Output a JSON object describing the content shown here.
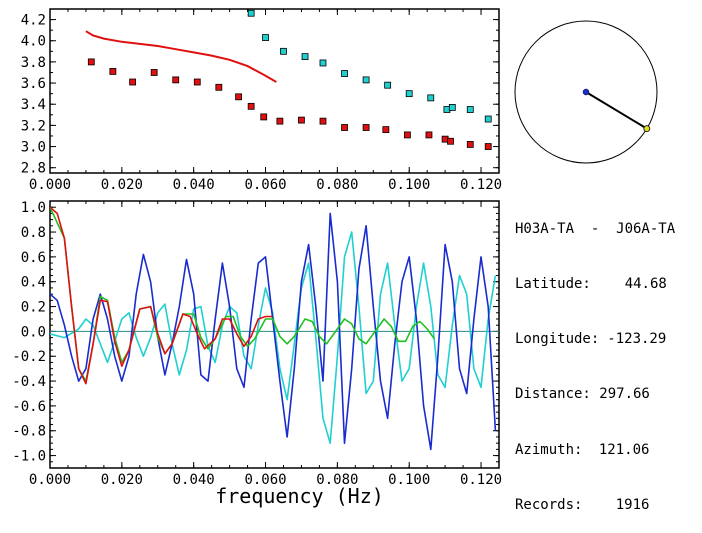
{
  "station_pair": "H03A-TA  -  J06A-TA",
  "info": [
    {
      "label": "Latitude:",
      "value": "44.68"
    },
    {
      "label": "Longitude:",
      "value": "-123.29"
    },
    {
      "label": "Distance:",
      "value": "297.66"
    },
    {
      "label": "Azimuth:",
      "value": "121.06"
    },
    {
      "label": "Records:",
      "value": "1916"
    }
  ],
  "chart_data": [
    {
      "type": "scatter",
      "title": "",
      "xlabel": "",
      "ylabel": "",
      "xlim": [
        0.0,
        0.125
      ],
      "ylim": [
        2.75,
        4.3
      ],
      "x_ticks": [
        "0.000",
        "0.020",
        "0.040",
        "0.060",
        "0.080",
        "0.100",
        "0.120"
      ],
      "y_ticks": [
        "2.8",
        "3.0",
        "3.2",
        "3.4",
        "3.6",
        "3.8",
        "4.0",
        "4.2"
      ],
      "colors": {
        "red": "#e01010",
        "cyan": "#20d0d0"
      },
      "series": [
        {
          "type": "line",
          "color": "#e01010",
          "points": [
            [
              0.01,
              4.09
            ],
            [
              0.012,
              4.05
            ],
            [
              0.015,
              4.02
            ],
            [
              0.02,
              3.99
            ],
            [
              0.025,
              3.97
            ],
            [
              0.03,
              3.95
            ],
            [
              0.035,
              3.92
            ],
            [
              0.04,
              3.89
            ],
            [
              0.045,
              3.86
            ],
            [
              0.05,
              3.82
            ],
            [
              0.055,
              3.76
            ],
            [
              0.06,
              3.67
            ],
            [
              0.063,
              3.61
            ]
          ]
        },
        {
          "type": "scatter",
          "color": "#e01010",
          "points": [
            [
              0.0115,
              3.8
            ],
            [
              0.0175,
              3.71
            ],
            [
              0.023,
              3.61
            ],
            [
              0.029,
              3.7
            ],
            [
              0.035,
              3.63
            ],
            [
              0.041,
              3.61
            ],
            [
              0.047,
              3.56
            ],
            [
              0.0525,
              3.47
            ],
            [
              0.056,
              3.38
            ],
            [
              0.0595,
              3.28
            ],
            [
              0.064,
              3.24
            ],
            [
              0.07,
              3.25
            ],
            [
              0.076,
              3.24
            ],
            [
              0.082,
              3.18
            ],
            [
              0.088,
              3.18
            ],
            [
              0.0935,
              3.16
            ],
            [
              0.0995,
              3.11
            ],
            [
              0.1055,
              3.11
            ],
            [
              0.11,
              3.07
            ],
            [
              0.1115,
              3.05
            ],
            [
              0.117,
              3.02
            ],
            [
              0.122,
              3.0
            ]
          ]
        },
        {
          "type": "scatter",
          "color": "#20d0d0",
          "points": [
            [
              0.056,
              4.26
            ],
            [
              0.06,
              4.03
            ],
            [
              0.065,
              3.9
            ],
            [
              0.071,
              3.85
            ],
            [
              0.076,
              3.79
            ],
            [
              0.082,
              3.69
            ],
            [
              0.088,
              3.63
            ],
            [
              0.094,
              3.58
            ],
            [
              0.1,
              3.5
            ],
            [
              0.106,
              3.46
            ],
            [
              0.1105,
              3.35
            ],
            [
              0.112,
              3.37
            ],
            [
              0.117,
              3.35
            ],
            [
              0.122,
              3.26
            ]
          ]
        }
      ]
    },
    {
      "type": "line",
      "title": "",
      "xlabel": "frequency (Hz)",
      "ylabel": "",
      "xlim": [
        0.0,
        0.125
      ],
      "ylim": [
        -1.1,
        1.05
      ],
      "x_ticks": [
        "0.000",
        "0.020",
        "0.040",
        "0.060",
        "0.080",
        "0.100",
        "0.120"
      ],
      "y_ticks": [
        "1.0",
        "0.8",
        "0.6",
        "0.4",
        "0.2",
        "0.0",
        "-0.2",
        "-0.4",
        "-0.6",
        "-0.8",
        "-1.0"
      ],
      "colors": {
        "blue": "#1a2bd0",
        "cyan": "#20d0d0",
        "red": "#e01010",
        "green": "#20c020",
        "zero_line": "#2a8a8a"
      },
      "series": [
        {
          "color": "#20d0d0",
          "points": [
            [
              0.0,
              -0.02
            ],
            [
              0.004,
              -0.05
            ],
            [
              0.008,
              0.02
            ],
            [
              0.01,
              0.1
            ],
            [
              0.012,
              0.05
            ],
            [
              0.014,
              -0.1
            ],
            [
              0.016,
              -0.25
            ],
            [
              0.018,
              -0.08
            ],
            [
              0.02,
              0.1
            ],
            [
              0.022,
              0.15
            ],
            [
              0.024,
              -0.05
            ],
            [
              0.026,
              -0.2
            ],
            [
              0.028,
              -0.05
            ],
            [
              0.03,
              0.15
            ],
            [
              0.032,
              0.22
            ],
            [
              0.034,
              -0.1
            ],
            [
              0.036,
              -0.35
            ],
            [
              0.038,
              -0.15
            ],
            [
              0.04,
              0.18
            ],
            [
              0.042,
              0.2
            ],
            [
              0.044,
              -0.12
            ],
            [
              0.046,
              -0.25
            ],
            [
              0.048,
              0.05
            ],
            [
              0.05,
              0.2
            ],
            [
              0.052,
              0.15
            ],
            [
              0.054,
              -0.2
            ],
            [
              0.056,
              -0.3
            ],
            [
              0.058,
              0.05
            ],
            [
              0.06,
              0.35
            ],
            [
              0.062,
              0.15
            ],
            [
              0.064,
              -0.3
            ],
            [
              0.066,
              -0.55
            ],
            [
              0.068,
              -0.1
            ],
            [
              0.07,
              0.35
            ],
            [
              0.072,
              0.55
            ],
            [
              0.074,
              -0.05
            ],
            [
              0.076,
              -0.7
            ],
            [
              0.078,
              -0.9
            ],
            [
              0.08,
              -0.2
            ],
            [
              0.082,
              0.6
            ],
            [
              0.084,
              0.8
            ],
            [
              0.086,
              0.2
            ],
            [
              0.088,
              -0.5
            ],
            [
              0.09,
              -0.4
            ],
            [
              0.092,
              0.3
            ],
            [
              0.094,
              0.55
            ],
            [
              0.096,
              0.05
            ],
            [
              0.098,
              -0.4
            ],
            [
              0.1,
              -0.3
            ],
            [
              0.102,
              0.2
            ],
            [
              0.104,
              0.55
            ],
            [
              0.106,
              0.2
            ],
            [
              0.108,
              -0.35
            ],
            [
              0.11,
              -0.45
            ],
            [
              0.112,
              0.05
            ],
            [
              0.114,
              0.45
            ],
            [
              0.116,
              0.3
            ],
            [
              0.118,
              -0.3
            ],
            [
              0.12,
              -0.45
            ],
            [
              0.122,
              0.1
            ],
            [
              0.124,
              0.45
            ]
          ]
        },
        {
          "color": "#1a2bd0",
          "points": [
            [
              0.0,
              0.3
            ],
            [
              0.002,
              0.25
            ],
            [
              0.004,
              0.05
            ],
            [
              0.006,
              -0.2
            ],
            [
              0.008,
              -0.4
            ],
            [
              0.01,
              -0.3
            ],
            [
              0.012,
              0.1
            ],
            [
              0.014,
              0.3
            ],
            [
              0.016,
              0.1
            ],
            [
              0.018,
              -0.2
            ],
            [
              0.02,
              -0.4
            ],
            [
              0.022,
              -0.2
            ],
            [
              0.024,
              0.3
            ],
            [
              0.026,
              0.62
            ],
            [
              0.028,
              0.4
            ],
            [
              0.03,
              -0.05
            ],
            [
              0.032,
              -0.35
            ],
            [
              0.034,
              -0.1
            ],
            [
              0.036,
              0.2
            ],
            [
              0.038,
              0.58
            ],
            [
              0.04,
              0.3
            ],
            [
              0.042,
              -0.35
            ],
            [
              0.044,
              -0.4
            ],
            [
              0.046,
              0.1
            ],
            [
              0.048,
              0.55
            ],
            [
              0.05,
              0.2
            ],
            [
              0.052,
              -0.3
            ],
            [
              0.054,
              -0.45
            ],
            [
              0.056,
              0.1
            ],
            [
              0.058,
              0.55
            ],
            [
              0.06,
              0.6
            ],
            [
              0.062,
              0.1
            ],
            [
              0.064,
              -0.4
            ],
            [
              0.066,
              -0.85
            ],
            [
              0.068,
              -0.3
            ],
            [
              0.07,
              0.4
            ],
            [
              0.072,
              0.7
            ],
            [
              0.074,
              0.2
            ],
            [
              0.076,
              -0.4
            ],
            [
              0.078,
              0.95
            ],
            [
              0.08,
              0.4
            ],
            [
              0.082,
              -0.9
            ],
            [
              0.084,
              -0.3
            ],
            [
              0.086,
              0.5
            ],
            [
              0.088,
              0.85
            ],
            [
              0.09,
              0.2
            ],
            [
              0.092,
              -0.4
            ],
            [
              0.094,
              -0.7
            ],
            [
              0.096,
              -0.1
            ],
            [
              0.098,
              0.4
            ],
            [
              0.1,
              0.6
            ],
            [
              0.102,
              0.1
            ],
            [
              0.104,
              -0.6
            ],
            [
              0.106,
              -0.95
            ],
            [
              0.108,
              -0.2
            ],
            [
              0.11,
              0.7
            ],
            [
              0.112,
              0.4
            ],
            [
              0.114,
              -0.3
            ],
            [
              0.116,
              -0.5
            ],
            [
              0.118,
              0.1
            ],
            [
              0.12,
              0.6
            ],
            [
              0.122,
              0.2
            ],
            [
              0.124,
              -0.8
            ]
          ]
        },
        {
          "color": "#20c020",
          "points": [
            [
              0.0,
              1.0
            ],
            [
              0.004,
              0.75
            ],
            [
              0.006,
              0.2
            ],
            [
              0.008,
              -0.3
            ],
            [
              0.01,
              -0.4
            ],
            [
              0.012,
              -0.1
            ],
            [
              0.014,
              0.28
            ],
            [
              0.016,
              0.25
            ],
            [
              0.018,
              -0.05
            ],
            [
              0.02,
              -0.25
            ],
            [
              0.022,
              -0.15
            ],
            [
              0.025,
              0.18
            ],
            [
              0.028,
              0.2
            ],
            [
              0.03,
              -0.05
            ],
            [
              0.032,
              -0.18
            ],
            [
              0.034,
              -0.1
            ],
            [
              0.037,
              0.14
            ],
            [
              0.04,
              0.14
            ],
            [
              0.042,
              -0.05
            ],
            [
              0.044,
              -0.14
            ],
            [
              0.046,
              -0.06
            ],
            [
              0.049,
              0.12
            ],
            [
              0.051,
              0.12
            ],
            [
              0.053,
              -0.04
            ],
            [
              0.055,
              -0.12
            ],
            [
              0.057,
              -0.06
            ],
            [
              0.06,
              0.1
            ],
            [
              0.062,
              0.1
            ],
            [
              0.064,
              -0.04
            ],
            [
              0.066,
              -0.1
            ],
            [
              0.068,
              -0.04
            ],
            [
              0.071,
              0.1
            ],
            [
              0.073,
              0.08
            ],
            [
              0.075,
              -0.04
            ],
            [
              0.077,
              -0.1
            ],
            [
              0.079,
              -0.02
            ],
            [
              0.082,
              0.1
            ],
            [
              0.084,
              0.06
            ],
            [
              0.086,
              -0.06
            ],
            [
              0.088,
              -0.1
            ],
            [
              0.091,
              0.02
            ],
            [
              0.093,
              0.1
            ],
            [
              0.095,
              0.04
            ],
            [
              0.097,
              -0.08
            ],
            [
              0.099,
              -0.08
            ],
            [
              0.101,
              0.04
            ],
            [
              0.103,
              0.08
            ],
            [
              0.105,
              0.02
            ],
            [
              0.107,
              -0.06
            ]
          ]
        },
        {
          "color": "#e01010",
          "points": [
            [
              0.0,
              1.0
            ],
            [
              0.002,
              0.95
            ],
            [
              0.004,
              0.75
            ],
            [
              0.006,
              0.2
            ],
            [
              0.008,
              -0.3
            ],
            [
              0.01,
              -0.42
            ],
            [
              0.012,
              -0.1
            ],
            [
              0.014,
              0.25
            ],
            [
              0.016,
              0.24
            ],
            [
              0.018,
              -0.08
            ],
            [
              0.02,
              -0.28
            ],
            [
              0.022,
              -0.15
            ],
            [
              0.025,
              0.18
            ],
            [
              0.028,
              0.2
            ],
            [
              0.03,
              -0.02
            ],
            [
              0.032,
              -0.18
            ],
            [
              0.034,
              -0.1
            ],
            [
              0.037,
              0.14
            ],
            [
              0.039,
              0.12
            ],
            [
              0.041,
              -0.02
            ],
            [
              0.043,
              -0.14
            ],
            [
              0.046,
              -0.06
            ],
            [
              0.048,
              0.1
            ],
            [
              0.05,
              0.1
            ],
            [
              0.052,
              -0.02
            ],
            [
              0.054,
              -0.12
            ],
            [
              0.056,
              -0.04
            ],
            [
              0.058,
              0.1
            ],
            [
              0.06,
              0.12
            ],
            [
              0.062,
              0.12
            ]
          ]
        }
      ],
      "zero_line": true
    },
    {
      "type": "compass",
      "azimuth_deg": 121.06,
      "colors": {
        "circle": "#000000",
        "needle": "#000000",
        "center": "#1a2bd0",
        "tip": "#e0e020"
      }
    }
  ]
}
